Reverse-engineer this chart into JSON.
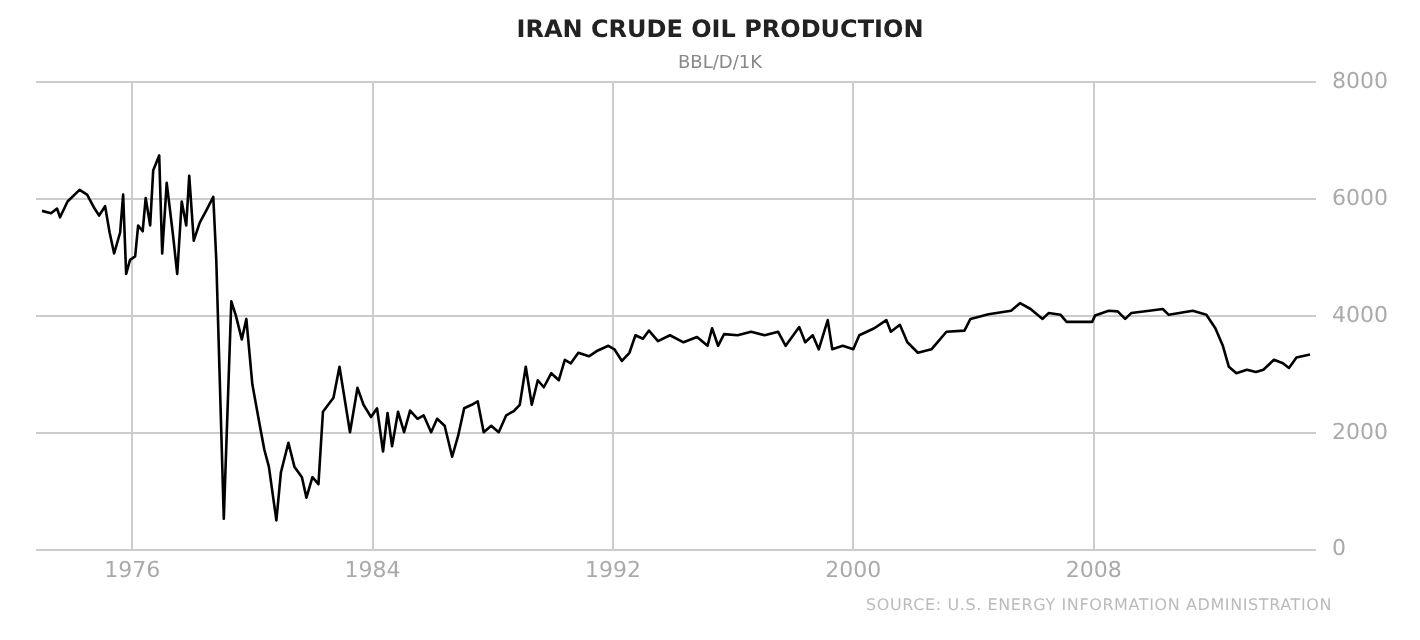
{
  "chart_data": {
    "type": "line",
    "title": "IRAN CRUDE OIL PRODUCTION",
    "subtitle": "BBL/D/1K",
    "annotations": [
      "SOURCE: U.S. ENERGY INFORMATION ADMINISTRATION"
    ],
    "xlim": [
      1972.8,
      2015.4
    ],
    "xticks": [
      1976,
      1984,
      1992,
      2000,
      2008
    ],
    "ylim": [
      0,
      8000
    ],
    "yticks": [
      0,
      2000,
      4000,
      6000,
      8000
    ],
    "grid": true,
    "legend": false,
    "marker": "none",
    "line_style": "solid",
    "series": [
      {
        "color": "#000000",
        "x": [
          1973.0,
          1973.3,
          1973.5,
          1973.6,
          1973.85,
          1974.25,
          1974.5,
          1974.75,
          1974.9,
          1975.1,
          1975.25,
          1975.4,
          1975.6,
          1975.7,
          1975.8,
          1975.93,
          1976.1,
          1976.2,
          1976.35,
          1976.45,
          1976.6,
          1976.7,
          1976.9,
          1977.0,
          1977.15,
          1977.35,
          1977.5,
          1977.65,
          1977.8,
          1977.9,
          1978.05,
          1978.25,
          1978.5,
          1978.7,
          1978.8,
          1979.05,
          1979.3,
          1979.45,
          1979.65,
          1979.8,
          1980.0,
          1980.25,
          1980.4,
          1980.55,
          1980.8,
          1980.95,
          1981.2,
          1981.4,
          1981.65,
          1981.8,
          1982.0,
          1982.2,
          1982.35,
          1982.7,
          1982.9,
          1983.25,
          1983.5,
          1983.7,
          1983.95,
          1984.15,
          1984.35,
          1984.5,
          1984.65,
          1984.85,
          1985.05,
          1985.25,
          1985.5,
          1985.7,
          1985.95,
          1986.15,
          1986.4,
          1986.65,
          1986.85,
          1987.05,
          1987.3,
          1987.5,
          1987.7,
          1987.95,
          1988.2,
          1988.45,
          1988.7,
          1988.9,
          1989.1,
          1989.3,
          1989.5,
          1989.7,
          1989.95,
          1990.2,
          1990.4,
          1990.6,
          1990.85,
          1991.2,
          1991.5,
          1991.85,
          1992.05,
          1992.3,
          1992.55,
          1992.75,
          1993.0,
          1993.2,
          1993.5,
          1993.9,
          1994.35,
          1994.8,
          1995.15,
          1995.3,
          1995.5,
          1995.7,
          1996.15,
          1996.6,
          1997.05,
          1997.5,
          1997.75,
          1998.2,
          1998.4,
          1998.65,
          1998.85,
          1999.15,
          1999.3,
          1999.65,
          2000.0,
          2000.2,
          2000.7,
          2001.1,
          2001.25,
          2001.55,
          2001.8,
          2002.15,
          2002.6,
          2002.8,
          2003.1,
          2003.7,
          2003.9,
          2004.5,
          2005.25,
          2005.55,
          2005.9,
          2006.3,
          2006.5,
          2006.9,
          2007.1,
          2007.95,
          2008.05,
          2008.5,
          2008.8,
          2009.05,
          2009.25,
          2009.85,
          2010.3,
          2010.5,
          2011.3,
          2011.75,
          2012.05,
          2012.3,
          2012.5,
          2012.75,
          2013.1,
          2013.4,
          2013.65,
          2014.0,
          2014.3,
          2014.5,
          2014.75,
          2015.2
        ],
        "values": [
          5800,
          5760,
          5840,
          5690,
          5960,
          6160,
          6080,
          5840,
          5720,
          5880,
          5430,
          5070,
          5430,
          6080,
          4720,
          4960,
          5020,
          5550,
          5450,
          6020,
          5550,
          6490,
          6750,
          5070,
          6280,
          5430,
          4720,
          5960,
          5550,
          6400,
          5290,
          5600,
          5840,
          6040,
          4960,
          530,
          4250,
          4010,
          3600,
          3950,
          2830,
          2120,
          1710,
          1420,
          500,
          1320,
          1830,
          1420,
          1240,
          890,
          1240,
          1120,
          2360,
          2600,
          3130,
          2010,
          2770,
          2480,
          2270,
          2420,
          1680,
          2340,
          1770,
          2360,
          2010,
          2380,
          2240,
          2300,
          2010,
          2240,
          2120,
          1590,
          1950,
          2420,
          2480,
          2540,
          2010,
          2120,
          2010,
          2300,
          2370,
          2480,
          3130,
          2480,
          2900,
          2780,
          3020,
          2900,
          3250,
          3190,
          3370,
          3310,
          3410,
          3490,
          3430,
          3230,
          3370,
          3670,
          3610,
          3750,
          3570,
          3670,
          3550,
          3640,
          3490,
          3790,
          3490,
          3690,
          3670,
          3730,
          3670,
          3730,
          3490,
          3810,
          3550,
          3670,
          3430,
          3930,
          3430,
          3490,
          3430,
          3670,
          3790,
          3930,
          3730,
          3850,
          3550,
          3370,
          3430,
          3550,
          3730,
          3750,
          3950,
          4030,
          4090,
          4220,
          4120,
          3950,
          4050,
          4020,
          3900,
          3900,
          4010,
          4090,
          4080,
          3950,
          4050,
          4090,
          4120,
          4020,
          4090,
          4020,
          3790,
          3490,
          3130,
          3020,
          3080,
          3040,
          3080,
          3250,
          3190,
          3110,
          3290,
          3340
        ]
      }
    ]
  }
}
